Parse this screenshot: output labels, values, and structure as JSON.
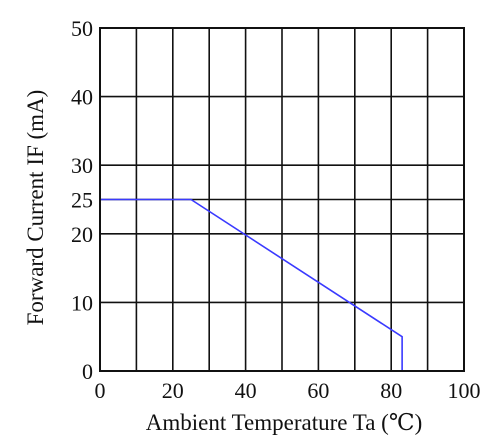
{
  "chart_data": {
    "type": "line",
    "title": "",
    "xlabel": "Ambient Temperature Ta (℃)",
    "ylabel": "Forward Current IF (mA)",
    "xlim": [
      0,
      100
    ],
    "ylim": [
      0,
      50
    ],
    "x_ticks": [
      "0",
      "20",
      "40",
      "60",
      "80",
      "100"
    ],
    "y_ticks": [
      "0",
      "10",
      "20",
      "25",
      "30",
      "40",
      "50"
    ],
    "grid": true,
    "legend": "none",
    "series": [
      {
        "color": "#3a3aff",
        "x": [
          0,
          25,
          83,
          83
        ],
        "y": [
          25,
          25,
          5,
          0
        ]
      }
    ]
  },
  "colors": {
    "grid": "#111111",
    "frame": "#111111",
    "series": "#3a3aff"
  }
}
